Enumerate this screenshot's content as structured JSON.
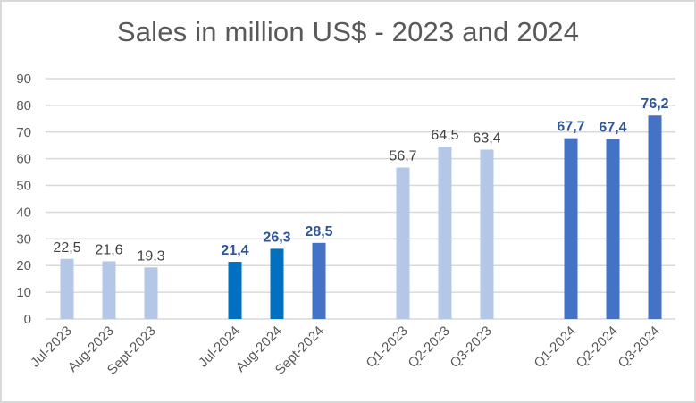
{
  "chart_data": {
    "type": "bar",
    "title": "Sales in million US$ - 2023 and 2024",
    "xlabel": "",
    "ylabel": "",
    "ylim": [
      0,
      90
    ],
    "yticks": [
      "0",
      "10",
      "20",
      "30",
      "40",
      "50",
      "60",
      "70",
      "80",
      "90"
    ],
    "grid": true,
    "legend": "none",
    "categories": [
      "Jul-2023",
      "Aug-2023",
      "Sept-2023",
      "",
      "Jul-2024",
      "Aug-2024",
      "Sept-2024",
      "",
      "Q1-2023",
      "Q2-2023",
      "Q3-2023",
      "",
      "Q1-2024",
      "Q2-2024",
      "Q3-2024"
    ],
    "values": [
      22.5,
      21.6,
      19.3,
      null,
      21.4,
      26.3,
      28.5,
      null,
      56.7,
      64.5,
      63.4,
      null,
      67.7,
      67.4,
      76.2
    ],
    "labels": [
      "22,5",
      "21,6",
      "19,3",
      "",
      "21,4",
      "26,3",
      "28,5",
      "",
      "56,7",
      "64,5",
      "63,4",
      "",
      "67,7",
      "67,4",
      "76,2"
    ],
    "bar_colors": [
      "#b4c7e7",
      "#b4c7e7",
      "#b4c7e7",
      "",
      "#0070c0",
      "#0070c0",
      "#4472c4",
      "",
      "#b4c7e7",
      "#b4c7e7",
      "#b4c7e7",
      "",
      "#4472c4",
      "#4472c4",
      "#4472c4"
    ],
    "label_styles": [
      "normal",
      "normal",
      "normal",
      "",
      "bold",
      "bold",
      "bold",
      "",
      "normal",
      "normal",
      "normal",
      "",
      "bold",
      "bold",
      "bold"
    ],
    "label_colors": [
      "#404040",
      "#404040",
      "#404040",
      "",
      "#2f5597",
      "#2f5597",
      "#2f5597",
      "",
      "#404040",
      "#404040",
      "#404040",
      "",
      "#2f5597",
      "#2f5597",
      "#2f5597"
    ]
  },
  "colors": {
    "gridline": "#d9d9d9",
    "text": "#595959",
    "light_bar": "#b4c7e7",
    "dark_blue_bar": "#0070c0",
    "medium_blue_bar": "#4472c4",
    "bold_label": "#2f5597"
  }
}
